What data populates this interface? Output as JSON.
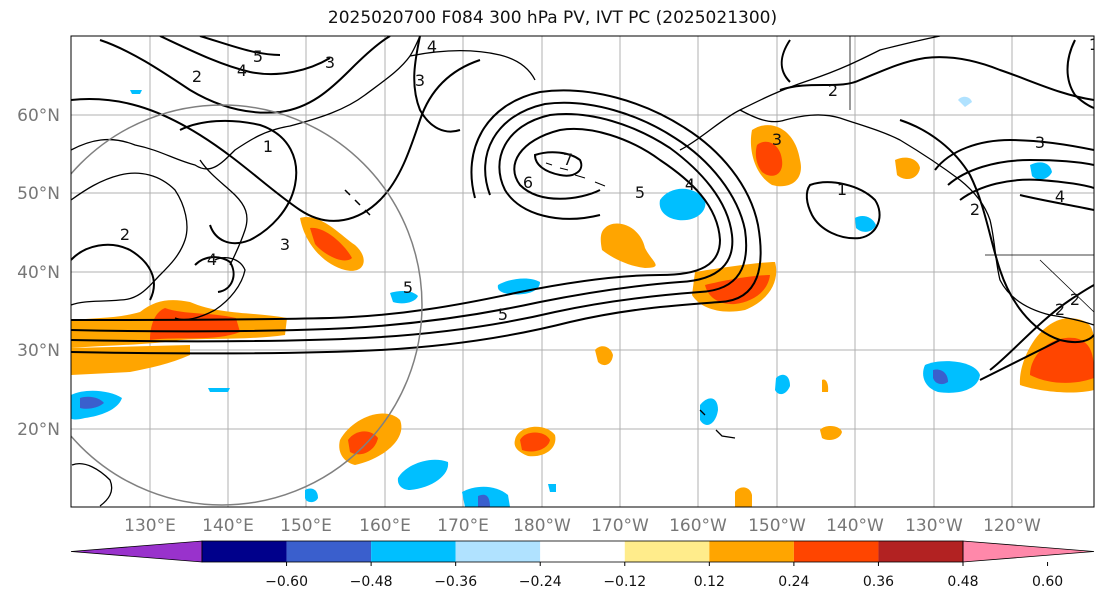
{
  "title": "2025020700 F084 300 hPa PV, IVT PC (2025021300)",
  "map": {
    "lat_labels": [
      "60°N",
      "50°N",
      "40°N",
      "30°N",
      "20°N"
    ],
    "lon_labels": [
      "130°E",
      "140°E",
      "150°E",
      "160°E",
      "170°E",
      "180°W",
      "170°W",
      "160°W",
      "150°W",
      "140°W",
      "130°W",
      "120°W"
    ],
    "contour_labels": [
      "5",
      "4",
      "3",
      "4",
      "3",
      "2",
      "1",
      "2",
      "3",
      "4",
      "5",
      "6",
      "7",
      "5",
      "4",
      "3",
      "2",
      "1",
      "2",
      "3",
      "4",
      "5",
      "2",
      "1",
      "2"
    ],
    "colors": {
      "contour": "#000000",
      "grid": "#b0b0b0",
      "circle": "#808080"
    }
  },
  "colorbar": {
    "labels": [
      "−0.60",
      "−0.48",
      "−0.36",
      "−0.24",
      "−0.12",
      "0.12",
      "0.24",
      "0.36",
      "0.48",
      "0.60"
    ],
    "colors": [
      "#9932cc",
      "#00008b",
      "#3a5fcd",
      "#00bfff",
      "#b0e2ff",
      "#ffffff",
      "#ffec8b",
      "#ffa500",
      "#ff4500",
      "#b22222",
      "#ff88aa"
    ]
  }
}
